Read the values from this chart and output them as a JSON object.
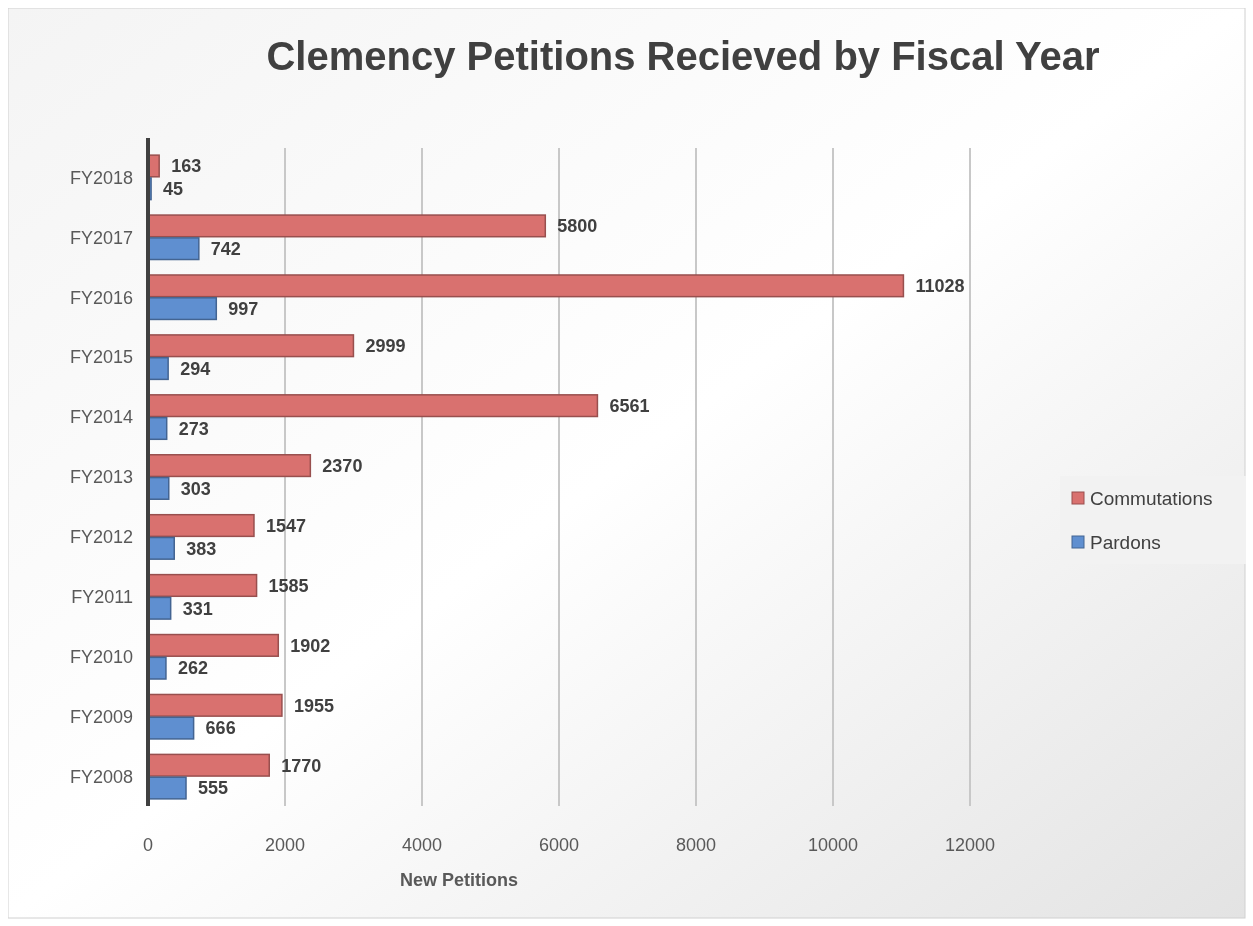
{
  "chart_data": {
    "type": "bar",
    "orientation": "horizontal",
    "title": "Clemency Petitions Recieved by Fiscal Year",
    "xlabel": "New Petitions",
    "categories": [
      "FY2018",
      "FY2017",
      "FY2016",
      "FY2015",
      "FY2014",
      "FY2013",
      "FY2012",
      "FY2011",
      "FY2010",
      "FY2009",
      "FY2008"
    ],
    "series": [
      {
        "name": "Commutations",
        "color": "#d9716f",
        "values": [
          163,
          5800,
          11028,
          2999,
          6561,
          2370,
          1547,
          1585,
          1902,
          1955,
          1770
        ]
      },
      {
        "name": "Pardons",
        "color": "#5f8fd0",
        "values": [
          45,
          742,
          997,
          294,
          273,
          303,
          383,
          331,
          262,
          666,
          555
        ]
      }
    ],
    "xlim": [
      0,
      12000
    ],
    "xticks": [
      0,
      2000,
      4000,
      6000,
      8000,
      10000,
      12000
    ],
    "grid": "x",
    "legend": "right",
    "data_labels": true
  }
}
